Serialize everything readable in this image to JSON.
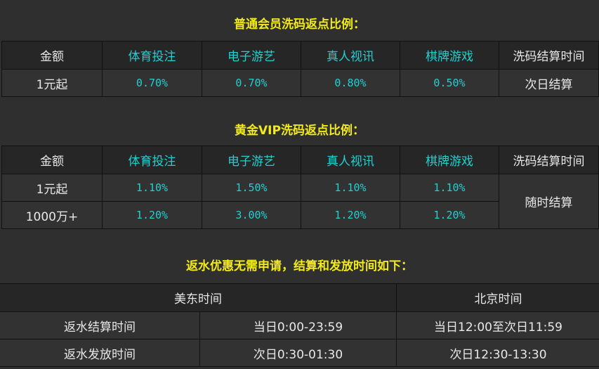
{
  "normal": {
    "title": "普通会员洗码返点比例：",
    "headers": [
      "金额",
      "体育投注",
      "电子游艺",
      "真人视讯",
      "棋牌游戏",
      "洗码结算时间"
    ],
    "row": [
      "1元起",
      "0.70%",
      "0.70%",
      "0.80%",
      "0.50%",
      "次日结算"
    ]
  },
  "gold": {
    "title": "黄金VIP洗码返点比例：",
    "headers": [
      "金额",
      "体育投注",
      "电子游艺",
      "真人视讯",
      "棋牌游戏",
      "洗码结算时间"
    ],
    "rows": [
      [
        "1元起",
        "1.10%",
        "1.50%",
        "1.10%",
        "1.10%"
      ],
      [
        "1000万+",
        "1.20%",
        "3.00%",
        "1.20%",
        "1.20%"
      ]
    ],
    "settle": "随时结算"
  },
  "rebate": {
    "title": "返水优惠无需申请，结算和发放时间如下：",
    "headers": [
      "美东时间",
      "北京时间"
    ],
    "rows": [
      [
        "返水结算时间",
        "当日0:00-23:59",
        "当日12:00至次日11:59"
      ],
      [
        "返水发放时间",
        "次日0:30-01:30",
        "次日12:30-13:30"
      ]
    ]
  },
  "colors": {
    "title": "#f2ea1a",
    "accent": "#22d0d0"
  }
}
